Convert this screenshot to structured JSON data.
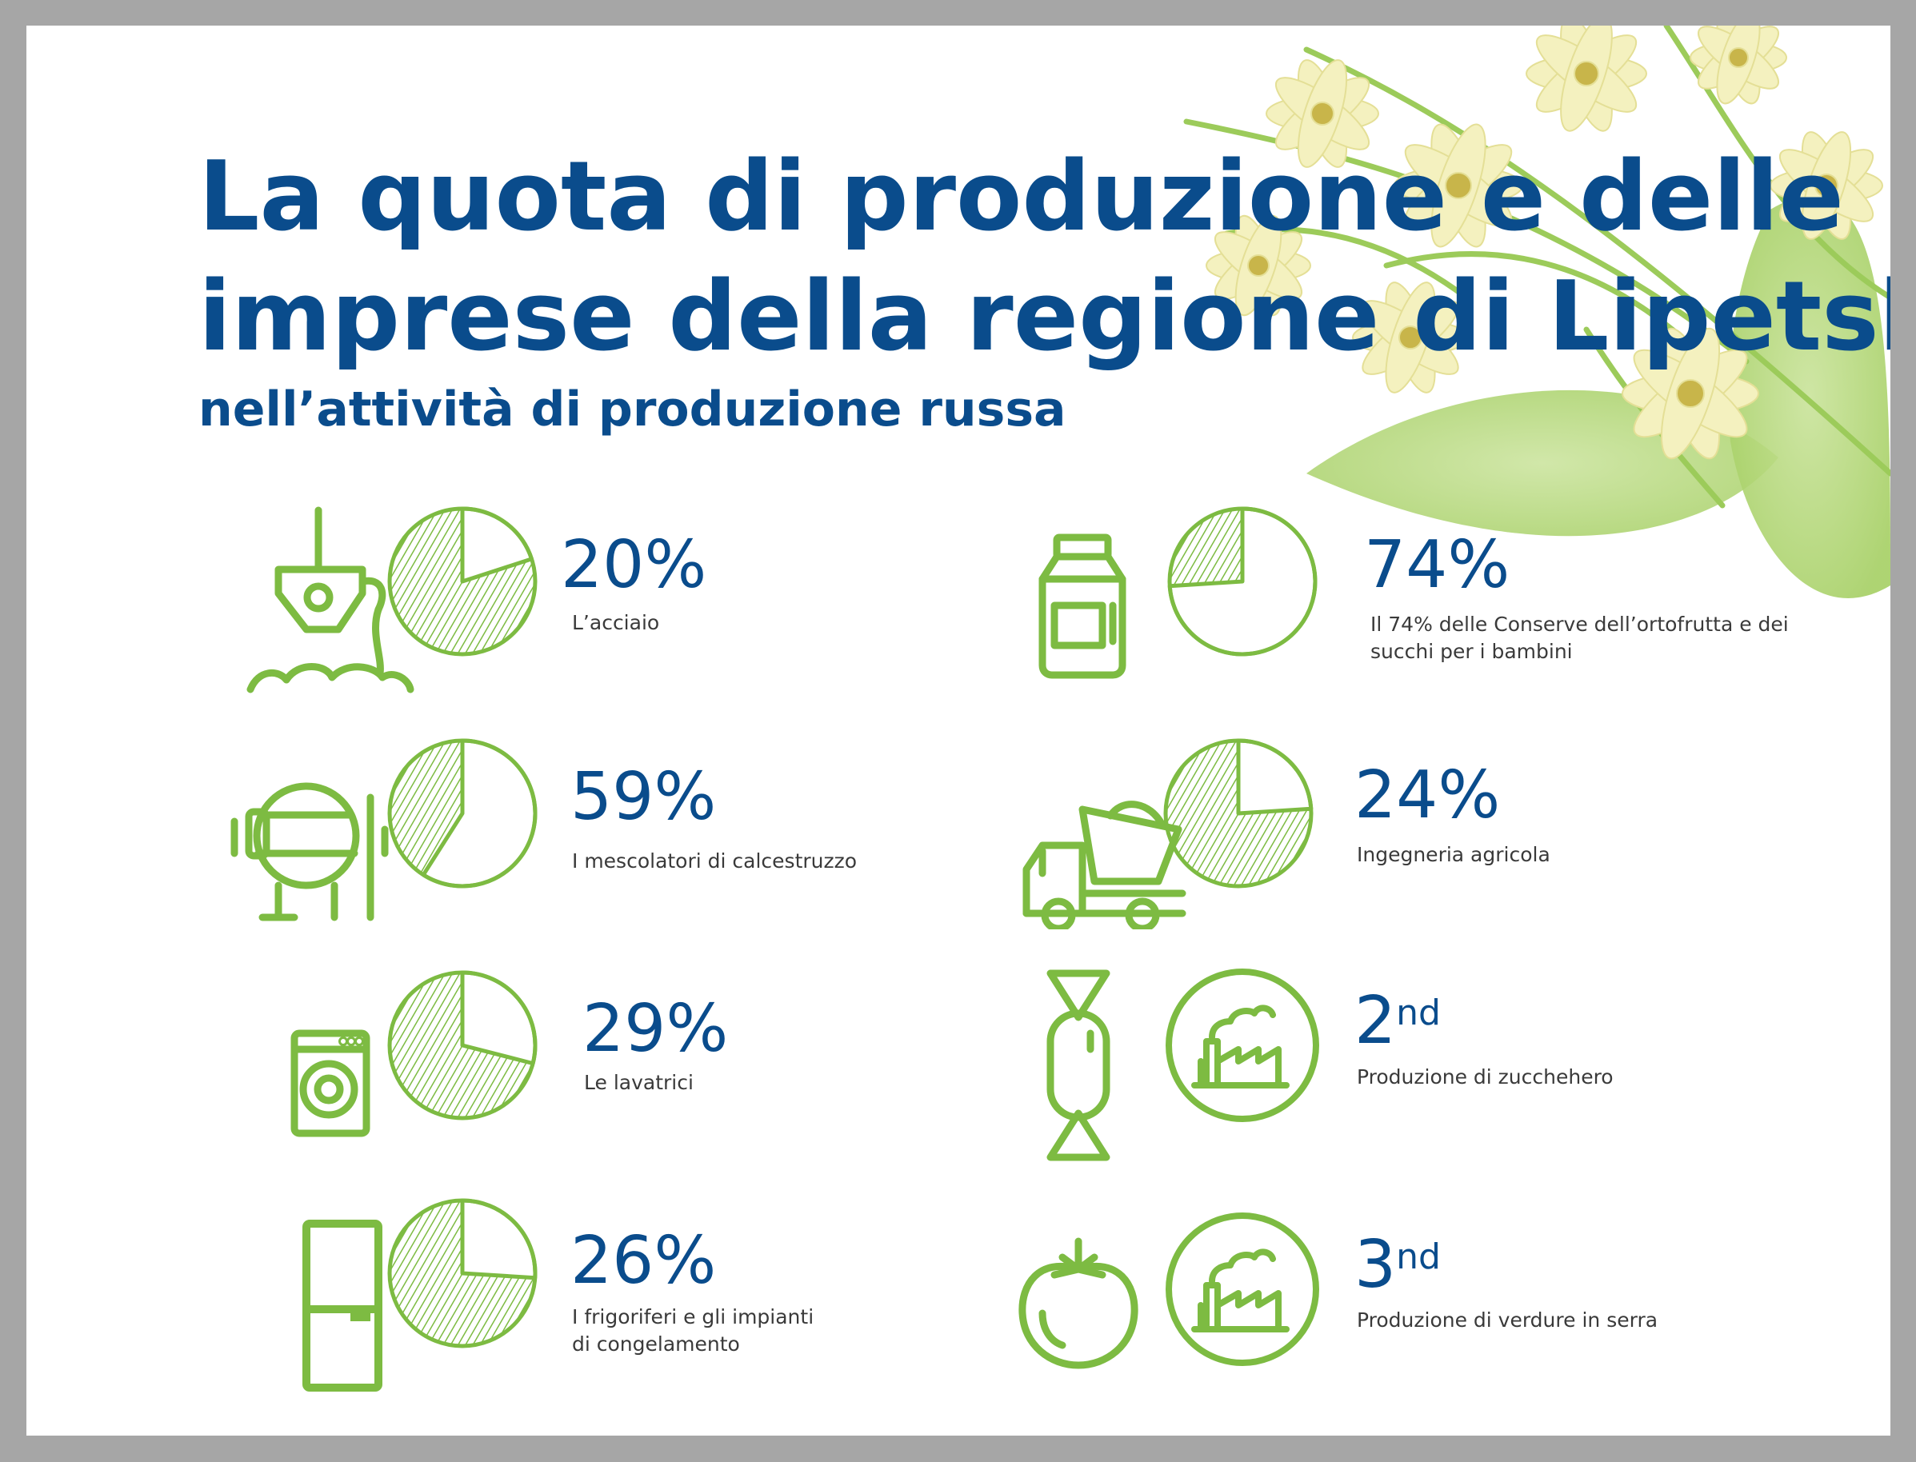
{
  "title_line1": "La quota di produzione e delle",
  "title_line2": "imprese della regione di Lipetsk",
  "subtitle": "nell’attività di produzione russa",
  "colors": {
    "accent_green": "#7dbb42",
    "title_blue": "#0a4c8c",
    "frame_gray": "#a6a6a6"
  },
  "chart_data": {
    "type": "pie",
    "items": [
      {
        "value": 20,
        "value_label": "20%",
        "label": "L’acciaio",
        "icon": "steel-ladle-icon"
      },
      {
        "value": 59,
        "value_label": "59%",
        "label": "I mescolatori di calcestruzzo",
        "icon": "concrete-mixer-icon"
      },
      {
        "value": 29,
        "value_label": "29%",
        "label": "Le lavatrici",
        "icon": "washing-machine-icon"
      },
      {
        "value": 26,
        "value_label": "26%",
        "label_line1": "I frigoriferi e gli impianti",
        "label_line2": "di congelamento",
        "icon": "refrigerator-icon"
      },
      {
        "value": 74,
        "value_label": "74%",
        "label_line1": "Il 74% delle Conserve dell’ortofrutta e dei",
        "label_line2": "succhi per i bambini",
        "icon": "jar-icon"
      },
      {
        "value": 24,
        "value_label": "24%",
        "label": "Ingegneria agricola",
        "icon": "dump-truck-icon"
      }
    ]
  },
  "rankings": [
    {
      "number": "2",
      "suffix": "nd",
      "label": "Produzione di zucchero",
      "label_display": "Produzione di zucchehero",
      "icon": "candy-icon"
    },
    {
      "number": "3",
      "suffix": "nd",
      "label": "Produzione di verdure in serra",
      "icon": "tomato-icon"
    }
  ]
}
